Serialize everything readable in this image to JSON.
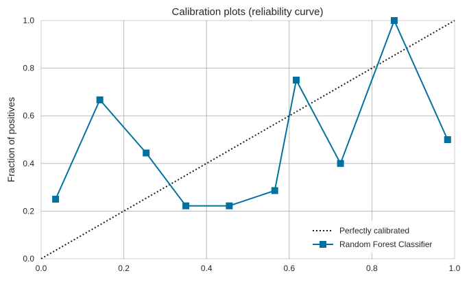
{
  "chart_data": {
    "type": "line",
    "title": "Calibration plots (reliability curve)",
    "xlabel": "",
    "ylabel": "Fraction of positives",
    "xlim": [
      0.0,
      1.0
    ],
    "ylim": [
      0.0,
      1.0
    ],
    "xticks": [
      0.0,
      0.2,
      0.4,
      0.6,
      0.8,
      1.0
    ],
    "yticks": [
      0.0,
      0.2,
      0.4,
      0.6,
      0.8,
      1.0
    ],
    "xtick_labels": [
      "0.0",
      "0.2",
      "0.4",
      "0.6",
      "0.8",
      "1.0"
    ],
    "ytick_labels": [
      "0.0",
      "0.2",
      "0.4",
      "0.6",
      "0.8",
      "1.0"
    ],
    "grid": true,
    "legend_position": "bottom-right",
    "series": [
      {
        "name": "Perfectly calibrated",
        "style": "dotted",
        "color": "#1a1a1a",
        "x": [
          0.0,
          1.0
        ],
        "y": [
          0.0,
          1.0
        ]
      },
      {
        "name": "Random Forest Classifier",
        "style": "solid-square-markers",
        "color": "#0071a1",
        "x": [
          0.035,
          0.142,
          0.254,
          0.35,
          0.455,
          0.565,
          0.617,
          0.724,
          0.854,
          0.983
        ],
        "y": [
          0.25,
          0.667,
          0.444,
          0.222,
          0.222,
          0.286,
          0.75,
          0.4,
          1.0,
          0.5
        ]
      }
    ]
  }
}
